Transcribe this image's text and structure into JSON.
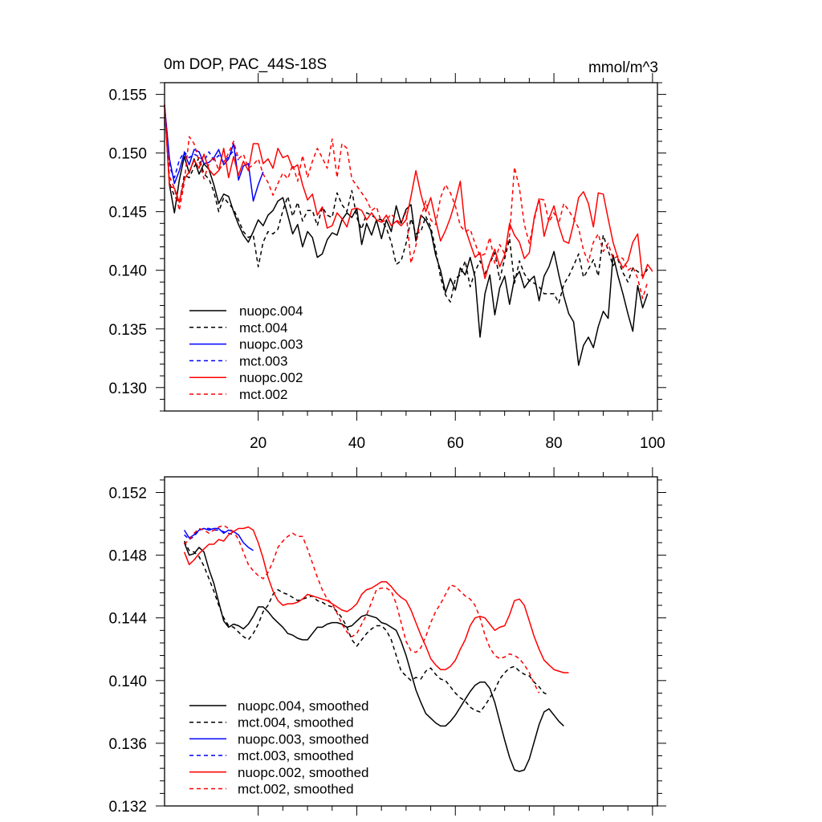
{
  "chart_data": [
    {
      "type": "line",
      "title": "0m DOP, PAC_44S-18S",
      "units": "mmol/m^3",
      "xlim": [
        1,
        101
      ],
      "ylim": [
        0.128,
        0.156
      ],
      "x_ticks": [
        20,
        40,
        60,
        80,
        100
      ],
      "x_tick_labels": [
        "20",
        "40",
        "60",
        "80",
        "100"
      ],
      "y_ticks": [
        0.13,
        0.135,
        0.14,
        0.145,
        0.15,
        0.155
      ],
      "y_tick_labels": [
        "0.130",
        "0.135",
        "0.140",
        "0.145",
        "0.150",
        "0.155"
      ],
      "legend_position": "bottom-left",
      "series": [
        {
          "name": "nuopc.004",
          "color": "#000000",
          "dash": "solid",
          "x_start": 1,
          "values": [
            0.1541,
            0.1473,
            0.1449,
            0.1477,
            0.1497,
            0.1483,
            0.1495,
            0.1482,
            0.1491,
            0.1486,
            0.1473,
            0.1457,
            0.1465,
            0.1463,
            0.145,
            0.1439,
            0.143,
            0.1424,
            0.1433,
            0.1443,
            0.1438,
            0.1447,
            0.1451,
            0.1459,
            0.1462,
            0.1447,
            0.1431,
            0.1439,
            0.142,
            0.1433,
            0.1428,
            0.1411,
            0.1414,
            0.1426,
            0.1432,
            0.143,
            0.1443,
            0.1449,
            0.1445,
            0.1453,
            0.1422,
            0.144,
            0.143,
            0.1443,
            0.1427,
            0.1443,
            0.1433,
            0.1455,
            0.144,
            0.1452,
            0.1456,
            0.1425,
            0.1447,
            0.1443,
            0.1434,
            0.1413,
            0.14,
            0.1381,
            0.1393,
            0.1383,
            0.1402,
            0.1396,
            0.1411,
            0.1394,
            0.1343,
            0.138,
            0.1396,
            0.1362,
            0.1385,
            0.1395,
            0.1371,
            0.1393,
            0.1399,
            0.1385,
            0.1391,
            0.1395,
            0.1374,
            0.1395,
            0.1403,
            0.1416,
            0.1396,
            0.1378,
            0.1363,
            0.1356,
            0.1319,
            0.1336,
            0.1343,
            0.1334,
            0.1352,
            0.1365,
            0.1359,
            0.1413,
            0.1395,
            0.138,
            0.1363,
            0.1348,
            0.1387,
            0.1368,
            0.138
          ]
        },
        {
          "name": "mct.004",
          "color": "#000000",
          "dash": "dashed",
          "x_start": 1,
          "values": [
            0.1541,
            0.1475,
            0.1463,
            0.1458,
            0.1481,
            0.1479,
            0.1488,
            0.1496,
            0.1482,
            0.1478,
            0.1467,
            0.145,
            0.1462,
            0.1457,
            0.1452,
            0.1443,
            0.1433,
            0.1428,
            0.143,
            0.1403,
            0.1424,
            0.1433,
            0.1431,
            0.1435,
            0.1451,
            0.1463,
            0.1446,
            0.1458,
            0.1442,
            0.1451,
            0.1451,
            0.1438,
            0.1454,
            0.1447,
            0.1445,
            0.1466,
            0.1456,
            0.145,
            0.1468,
            0.1445,
            0.1435,
            0.1449,
            0.1447,
            0.1444,
            0.1443,
            0.1436,
            0.1424,
            0.1405,
            0.1408,
            0.1423,
            0.1444,
            0.1431,
            0.1433,
            0.1446,
            0.1437,
            0.1418,
            0.1394,
            0.1379,
            0.1373,
            0.1393,
            0.1396,
            0.1408,
            0.1386,
            0.1399,
            0.1408,
            0.1397,
            0.1406,
            0.1415,
            0.1392,
            0.141,
            0.1427,
            0.1389,
            0.1408,
            0.1397,
            0.1391,
            0.1389,
            0.1386,
            0.138,
            0.138,
            0.138,
            0.1372,
            0.1388,
            0.1395,
            0.1404,
            0.1414,
            0.1394,
            0.1401,
            0.1409,
            0.1395,
            0.143,
            0.1417,
            0.1404,
            0.1409,
            0.1398,
            0.139,
            0.1402,
            0.1399,
            0.1395,
            0.1401
          ]
        },
        {
          "name": "nuopc.003",
          "color": "#0000ff",
          "dash": "solid",
          "x_start": 1,
          "values": [
            0.1541,
            0.1495,
            0.1474,
            0.1485,
            0.15,
            0.149,
            0.1503,
            0.1501,
            0.1491,
            0.1492,
            0.1496,
            0.1503,
            0.149,
            0.1495,
            0.1508,
            0.1477,
            0.1489,
            0.1491,
            0.1459,
            0.1473,
            0.1484
          ]
        },
        {
          "name": "mct.003",
          "color": "#0000ff",
          "dash": "dashed",
          "x_start": 1,
          "values": [
            0.1541,
            0.1488,
            0.1479,
            0.1494,
            0.1501,
            0.1496,
            0.1499,
            0.1497,
            0.1493,
            0.1501,
            0.1494,
            0.1498,
            0.1492,
            0.1497,
            0.1502,
            0.1494
          ]
        },
        {
          "name": "nuopc.002",
          "color": "#ff0000",
          "dash": "solid",
          "x_start": 1,
          "values": [
            0.1541,
            0.1472,
            0.147,
            0.1458,
            0.1478,
            0.1484,
            0.1494,
            0.1487,
            0.1499,
            0.1486,
            0.1481,
            0.1485,
            0.1504,
            0.1479,
            0.1497,
            0.1481,
            0.1493,
            0.1485,
            0.1508,
            0.1508,
            0.1491,
            0.1495,
            0.1487,
            0.1504,
            0.1496,
            0.1498,
            0.1487,
            0.149,
            0.1473,
            0.146,
            0.1465,
            0.1447,
            0.1454,
            0.1436,
            0.1438,
            0.1449,
            0.1444,
            0.1437,
            0.1452,
            0.1453,
            0.1451,
            0.1443,
            0.1449,
            0.1443,
            0.1441,
            0.1447,
            0.1438,
            0.1442,
            0.1438,
            0.1443,
            0.1463,
            0.1485,
            0.1465,
            0.145,
            0.1462,
            0.1443,
            0.1425,
            0.1434,
            0.1445,
            0.1459,
            0.1476,
            0.1436,
            0.1423,
            0.1411,
            0.1415,
            0.1393,
            0.1407,
            0.1418,
            0.1403,
            0.1413,
            0.144,
            0.143,
            0.1424,
            0.141,
            0.1415,
            0.1445,
            0.1461,
            0.1429,
            0.1444,
            0.1455,
            0.1438,
            0.1425,
            0.1423,
            0.144,
            0.1462,
            0.1467,
            0.1457,
            0.1437,
            0.1466,
            0.1465,
            0.1444,
            0.1424,
            0.141,
            0.1402,
            0.1408,
            0.1424,
            0.1431,
            0.1393,
            0.1405,
            0.1399
          ]
        },
        {
          "name": "mct.002",
          "color": "#ff0000",
          "dash": "dashed",
          "x_start": 1,
          "values": [
            0.1541,
            0.148,
            0.147,
            0.1451,
            0.1475,
            0.1514,
            0.1508,
            0.1493,
            0.1478,
            0.1491,
            0.1497,
            0.1485,
            0.1492,
            0.15,
            0.151,
            0.1495,
            0.1499,
            0.1487,
            0.149,
            0.1495,
            0.1482,
            0.1475,
            0.1464,
            0.1474,
            0.1483,
            0.1478,
            0.149,
            0.1476,
            0.1498,
            0.1479,
            0.1493,
            0.1504,
            0.1496,
            0.1487,
            0.1512,
            0.1479,
            0.1508,
            0.1504,
            0.1478,
            0.1472,
            0.1466,
            0.146,
            0.1451,
            0.1454,
            0.1441,
            0.1443,
            0.1448,
            0.1443,
            0.144,
            0.145,
            0.1406,
            0.1421,
            0.1445,
            0.1459,
            0.1443,
            0.1439,
            0.1462,
            0.1473,
            0.1466,
            0.1455,
            0.1438,
            0.1433,
            0.1435,
            0.1423,
            0.1412,
            0.1414,
            0.1428,
            0.1406,
            0.1422,
            0.1414,
            0.143,
            0.1488,
            0.147,
            0.1439,
            0.1423,
            0.1443,
            0.1461,
            0.146,
            0.1441,
            0.1449,
            0.144,
            0.1457,
            0.1451,
            0.1444,
            0.1436,
            0.1417,
            0.1407,
            0.1424,
            0.1431,
            0.1416,
            0.1423,
            0.141,
            0.1412,
            0.141,
            0.14,
            0.1403,
            0.1393,
            0.1376,
            0.139
          ]
        }
      ]
    },
    {
      "type": "line",
      "title": "",
      "xlim": [
        1,
        101
      ],
      "ylim": [
        0.132,
        0.153
      ],
      "y_ticks": [
        0.132,
        0.136,
        0.14,
        0.144,
        0.148,
        0.152
      ],
      "y_tick_labels": [
        "0.132",
        "0.136",
        "0.140",
        "0.144",
        "0.148",
        "0.152"
      ],
      "legend_position": "bottom-left",
      "series": [
        {
          "name": "nuopc.004, smoothed",
          "color": "#000000",
          "dash": "solid",
          "x_start": 5,
          "values": [
            0.1488,
            0.148,
            0.1481,
            0.1485,
            0.1482,
            0.1471,
            0.1462,
            0.145,
            0.1438,
            0.1434,
            0.1436,
            0.1435,
            0.1433,
            0.1436,
            0.1441,
            0.1447,
            0.1447,
            0.1444,
            0.144,
            0.1437,
            0.1434,
            0.143,
            0.1429,
            0.1427,
            0.1426,
            0.1426,
            0.143,
            0.1434,
            0.1434,
            0.1436,
            0.1437,
            0.1437,
            0.1436,
            0.1434,
            0.1435,
            0.1438,
            0.1441,
            0.1442,
            0.1441,
            0.144,
            0.1437,
            0.1436,
            0.1434,
            0.1432,
            0.1425,
            0.1416,
            0.1405,
            0.1394,
            0.1386,
            0.1379,
            0.1376,
            0.1373,
            0.1371,
            0.1371,
            0.1374,
            0.1378,
            0.1383,
            0.1388,
            0.1393,
            0.1397,
            0.1399,
            0.1399,
            0.1395,
            0.1386,
            0.1374,
            0.1362,
            0.1351,
            0.1343,
            0.1342,
            0.1343,
            0.135,
            0.1361,
            0.1372,
            0.138,
            0.1382,
            0.1378,
            0.1374,
            0.1371
          ]
        },
        {
          "name": "mct.004, smoothed",
          "color": "#000000",
          "dash": "dashed",
          "x_start": 5,
          "values": [
            0.1489,
            0.1483,
            0.1482,
            0.1479,
            0.1473,
            0.1465,
            0.1457,
            0.1448,
            0.144,
            0.1435,
            0.1434,
            0.1431,
            0.1428,
            0.1426,
            0.143,
            0.1436,
            0.1444,
            0.1448,
            0.1455,
            0.1458,
            0.1456,
            0.1455,
            0.1453,
            0.1451,
            0.1452,
            0.1453,
            0.1454,
            0.1451,
            0.145,
            0.1448,
            0.1447,
            0.1444,
            0.144,
            0.1434,
            0.1426,
            0.1422,
            0.1426,
            0.143,
            0.1433,
            0.1435,
            0.1435,
            0.1432,
            0.1426,
            0.1416,
            0.1406,
            0.1403,
            0.14,
            0.1402,
            0.1401,
            0.1406,
            0.1408,
            0.1404,
            0.1401,
            0.14,
            0.1396,
            0.1392,
            0.1389,
            0.1387,
            0.1383,
            0.1381,
            0.138,
            0.1384,
            0.1389,
            0.1394,
            0.1401,
            0.1405,
            0.1408,
            0.1409,
            0.1406,
            0.1404,
            0.1403,
            0.1399,
            0.1396,
            0.1392,
            0.1391
          ]
        },
        {
          "name": "nuopc.003, smoothed",
          "color": "#0000ff",
          "dash": "solid",
          "x_start": 5,
          "values": [
            0.1496,
            0.1491,
            0.1493,
            0.1496,
            0.1497,
            0.1496,
            0.1497,
            0.1497,
            0.1494,
            0.1496,
            0.1495,
            0.1493,
            0.1488,
            0.1485,
            0.1483
          ]
        },
        {
          "name": "mct.003, smoothed",
          "color": "#0000ff",
          "dash": "dashed",
          "x_start": 5,
          "values": [
            0.1493,
            0.149,
            0.1492,
            0.1496,
            0.1497,
            0.1497,
            0.1496,
            0.1496,
            0.1495,
            0.1494,
            0.1493
          ]
        },
        {
          "name": "nuopc.002, smoothed",
          "color": "#ff0000",
          "dash": "solid",
          "x_start": 5,
          "values": [
            0.1482,
            0.1474,
            0.1477,
            0.1481,
            0.1484,
            0.1487,
            0.1487,
            0.149,
            0.1489,
            0.1493,
            0.1495,
            0.1497,
            0.1497,
            0.1498,
            0.1496,
            0.1488,
            0.1478,
            0.1466,
            0.1457,
            0.1451,
            0.1448,
            0.1449,
            0.1449,
            0.145,
            0.1452,
            0.1455,
            0.1454,
            0.1453,
            0.1452,
            0.1451,
            0.1449,
            0.1447,
            0.1445,
            0.1444,
            0.1446,
            0.1449,
            0.1455,
            0.1458,
            0.1459,
            0.1461,
            0.1463,
            0.1463,
            0.146,
            0.1456,
            0.1453,
            0.1451,
            0.1445,
            0.1437,
            0.1429,
            0.1422,
            0.1414,
            0.141,
            0.1407,
            0.1407,
            0.1409,
            0.1413,
            0.142,
            0.1426,
            0.1435,
            0.144,
            0.1441,
            0.144,
            0.1436,
            0.1432,
            0.1434,
            0.1435,
            0.1442,
            0.1451,
            0.1452,
            0.1448,
            0.1438,
            0.1428,
            0.142,
            0.1413,
            0.141,
            0.1407,
            0.1406,
            0.1405,
            0.1405
          ]
        },
        {
          "name": "mct.002, smoothed",
          "color": "#ff0000",
          "dash": "dashed",
          "x_start": 5,
          "values": [
            0.1487,
            0.149,
            0.1494,
            0.1497,
            0.1496,
            0.1494,
            0.1496,
            0.1498,
            0.1499,
            0.1497,
            0.1495,
            0.149,
            0.1482,
            0.1474,
            0.147,
            0.1467,
            0.1465,
            0.1469,
            0.1476,
            0.1485,
            0.1489,
            0.1492,
            0.1494,
            0.1492,
            0.1492,
            0.1484,
            0.1475,
            0.1466,
            0.1458,
            0.1452,
            0.1449,
            0.1443,
            0.1436,
            0.1431,
            0.1428,
            0.143,
            0.1436,
            0.1442,
            0.145,
            0.1458,
            0.1459,
            0.1459,
            0.1457,
            0.1449,
            0.1437,
            0.1425,
            0.1419,
            0.1418,
            0.1421,
            0.1428,
            0.1437,
            0.1444,
            0.1449,
            0.1455,
            0.1461,
            0.146,
            0.1457,
            0.1454,
            0.1452,
            0.1448,
            0.144,
            0.1429,
            0.1421,
            0.1416,
            0.1414,
            0.1415,
            0.1417,
            0.1416,
            0.1414,
            0.141,
            0.1405,
            0.1398,
            0.1392
          ]
        }
      ]
    }
  ]
}
